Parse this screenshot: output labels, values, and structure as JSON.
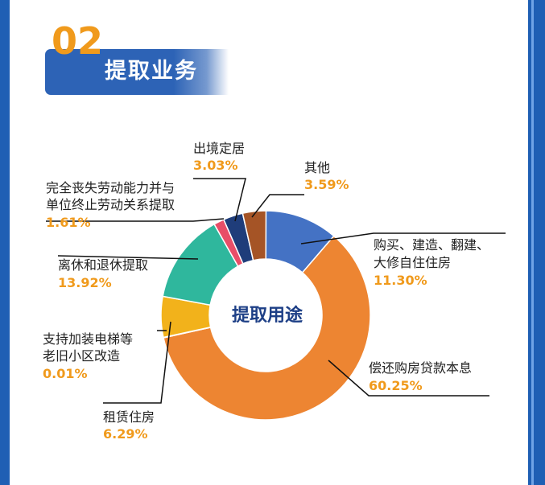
{
  "section": {
    "number": "02",
    "title": "提取业务"
  },
  "colors": {
    "frame_blue": "#1f5fb4",
    "accent_orange": "#f09a1c",
    "title_blue": "#2d63b6",
    "center_text": "#1d3f86"
  },
  "chart_data": {
    "type": "pie",
    "style": "donut",
    "center_label": "提取用途",
    "start": "12 o'clock",
    "direction": "clockwise",
    "slices": [
      {
        "label": "购买、建造、翻建、大修自住住房",
        "label_lines": [
          "购买、建造、翻建、",
          "大修自住住房"
        ],
        "value": 11.3,
        "value_text": "11.30%",
        "color": "#4472c4"
      },
      {
        "label": "偿还购房贷款本息",
        "label_lines": [
          "偿还购房贷款本息"
        ],
        "value": 60.25,
        "value_text": "60.25%",
        "color": "#ed8532"
      },
      {
        "label": "支持加装电梯等老旧小区改造",
        "label_lines": [
          "支持加装电梯等",
          "老旧小区改造"
        ],
        "value": 0.01,
        "value_text": "0.01%",
        "color": "#9a9a9a"
      },
      {
        "label": "租赁住房",
        "label_lines": [
          "租赁住房"
        ],
        "value": 6.29,
        "value_text": "6.29%",
        "color": "#f2b21b"
      },
      {
        "label": "离休和退休提取",
        "label_lines": [
          "离休和退休提取"
        ],
        "value": 13.92,
        "value_text": "13.92%",
        "color": "#2fb79d"
      },
      {
        "label": "完全丧失劳动能力并与单位终止劳动关系提取",
        "label_lines": [
          "完全丧失劳动能力并与",
          "单位终止劳动关系提取"
        ],
        "value": 1.61,
        "value_text": "1.61%",
        "color": "#e84e68"
      },
      {
        "label": "出境定居",
        "label_lines": [
          "出境定居"
        ],
        "value": 3.03,
        "value_text": "3.03%",
        "color": "#1f3d7a"
      },
      {
        "label": "其他",
        "label_lines": [
          "其他"
        ],
        "value": 3.59,
        "value_text": "3.59%",
        "color": "#a55426"
      }
    ]
  }
}
